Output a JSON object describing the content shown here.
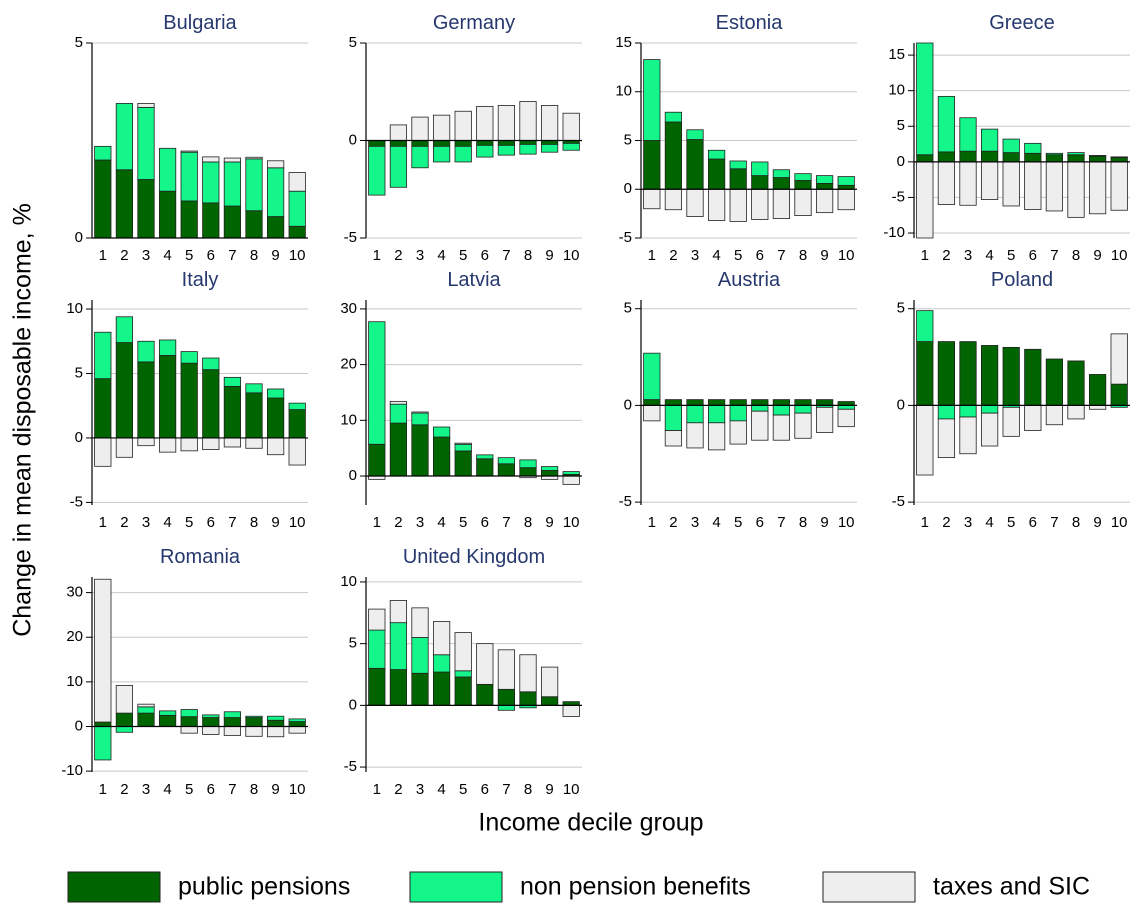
{
  "ylabel": "Change in mean disposable income, %",
  "xlabel": "Income decile group",
  "legend": [
    {
      "name": "public pensions",
      "color": "#006400"
    },
    {
      "name": "non pension benefits",
      "color": "#14f58a"
    },
    {
      "name": "taxes and SIC",
      "color": "#eeeeee"
    }
  ],
  "chart_data": [
    {
      "type": "bar",
      "stacked": true,
      "title": "Bulgaria",
      "categories": [
        1,
        2,
        3,
        4,
        5,
        6,
        7,
        8,
        9,
        10
      ],
      "series": [
        {
          "values": [
            2.0,
            1.75,
            1.5,
            1.2,
            0.95,
            0.9,
            0.82,
            0.7,
            0.55,
            0.3
          ]
        },
        {
          "values": [
            0.35,
            1.7,
            1.85,
            1.1,
            1.25,
            1.05,
            1.13,
            1.33,
            1.25,
            0.9
          ]
        },
        {
          "values": [
            0,
            0,
            0.1,
            0,
            0.03,
            0.13,
            0.1,
            0.04,
            0.18,
            0.48
          ]
        }
      ],
      "ylim": [
        0,
        5
      ],
      "yticks": [
        0,
        5
      ],
      "grid": true
    },
    {
      "type": "bar",
      "stacked": true,
      "title": "Germany",
      "categories": [
        1,
        2,
        3,
        4,
        5,
        6,
        7,
        8,
        9,
        10
      ],
      "series": [
        {
          "values": [
            -0.3,
            -0.3,
            -0.3,
            -0.3,
            -0.3,
            -0.25,
            -0.25,
            -0.2,
            -0.2,
            -0.15
          ]
        },
        {
          "values": [
            -2.5,
            -2.1,
            -1.1,
            -0.8,
            -0.8,
            -0.6,
            -0.5,
            -0.5,
            -0.4,
            -0.35
          ]
        },
        {
          "values": [
            0,
            0.8,
            1.2,
            1.3,
            1.5,
            1.75,
            1.8,
            2.0,
            1.8,
            1.4
          ]
        }
      ],
      "ylim": [
        -5,
        5
      ],
      "yticks": [
        -5,
        0,
        5
      ],
      "grid": true
    },
    {
      "type": "bar",
      "stacked": true,
      "title": "Estonia",
      "categories": [
        1,
        2,
        3,
        4,
        5,
        6,
        7,
        8,
        9,
        10
      ],
      "series": [
        {
          "values": [
            5,
            6.9,
            5.1,
            3.1,
            2.1,
            1.4,
            1.2,
            0.9,
            0.6,
            0.4
          ]
        },
        {
          "values": [
            8.3,
            1.0,
            1.0,
            0.9,
            0.8,
            1.4,
            0.8,
            0.7,
            0.8,
            0.9
          ]
        },
        {
          "values": [
            -2,
            -2.1,
            -2.8,
            -3.2,
            -3.3,
            -3.1,
            -3.0,
            -2.7,
            -2.4,
            -2.1
          ]
        }
      ],
      "ylim": [
        -5,
        15
      ],
      "yticks": [
        -5,
        0,
        5,
        10,
        15
      ],
      "grid": true
    },
    {
      "type": "bar",
      "stacked": true,
      "title": "Greece",
      "categories": [
        1,
        2,
        3,
        4,
        5,
        6,
        7,
        8,
        9,
        10
      ],
      "series": [
        {
          "values": [
            1.0,
            1.4,
            1.5,
            1.5,
            1.3,
            1.2,
            1.0,
            1.0,
            0.8,
            0.6
          ]
        },
        {
          "values": [
            15.7,
            7.8,
            4.7,
            3.1,
            1.9,
            1.4,
            0.2,
            0.3,
            0.1,
            0.1
          ]
        },
        {
          "values": [
            -10.7,
            -6.0,
            -6.1,
            -5.3,
            -6.2,
            -6.7,
            -6.9,
            -7.8,
            -7.3,
            -6.8
          ]
        }
      ],
      "ylim": [
        -10.7,
        16.7
      ],
      "yticks": [
        -10,
        -5,
        0,
        5,
        10,
        15
      ],
      "grid": true
    },
    {
      "type": "bar",
      "stacked": true,
      "title": "Italy",
      "categories": [
        1,
        2,
        3,
        4,
        5,
        6,
        7,
        8,
        9,
        10
      ],
      "series": [
        {
          "values": [
            4.6,
            7.4,
            5.9,
            6.4,
            5.8,
            5.3,
            4.0,
            3.5,
            3.1,
            2.2
          ]
        },
        {
          "values": [
            3.6,
            2.0,
            1.6,
            1.2,
            0.9,
            0.9,
            0.7,
            0.7,
            0.7,
            0.5
          ]
        },
        {
          "values": [
            -2.2,
            -1.5,
            -0.6,
            -1.1,
            -1.0,
            -0.9,
            -0.7,
            -0.8,
            -1.3,
            -2.1
          ]
        }
      ],
      "ylim": [
        -5.2,
        10.7
      ],
      "yticks": [
        -5,
        0,
        5,
        10
      ],
      "grid": true
    },
    {
      "type": "bar",
      "stacked": true,
      "title": "Latvia",
      "categories": [
        1,
        2,
        3,
        4,
        5,
        6,
        7,
        8,
        9,
        10
      ],
      "series": [
        {
          "values": [
            5.7,
            9.5,
            9.2,
            7.0,
            4.5,
            3.1,
            2.2,
            1.5,
            1.0,
            0.3
          ]
        },
        {
          "values": [
            22,
            3.4,
            2.1,
            1.8,
            1.2,
            0.7,
            1.1,
            1.4,
            0.7,
            0.5
          ]
        },
        {
          "values": [
            -0.6,
            0.5,
            0.2,
            0,
            0.2,
            0,
            0,
            -0.3,
            -0.6,
            -1.5
          ]
        }
      ],
      "ylim": [
        -5.2,
        31.6
      ],
      "yticks": [
        0,
        10,
        20,
        30
      ],
      "grid": true
    },
    {
      "type": "bar",
      "stacked": true,
      "title": "Austria",
      "categories": [
        1,
        2,
        3,
        4,
        5,
        6,
        7,
        8,
        9,
        10
      ],
      "series": [
        {
          "values": [
            0.3,
            0.3,
            0.3,
            0.3,
            0.3,
            0.3,
            0.3,
            0.3,
            0.3,
            0.2
          ]
        },
        {
          "values": [
            2.4,
            -1.3,
            -0.9,
            -0.9,
            -0.8,
            -0.3,
            -0.5,
            -0.4,
            -0.1,
            -0.2
          ]
        },
        {
          "values": [
            -0.8,
            -0.8,
            -1.3,
            -1.4,
            -1.2,
            -1.5,
            -1.3,
            -1.3,
            -1.3,
            -0.9
          ]
        }
      ],
      "ylim": [
        -5.15,
        5.45
      ],
      "yticks": [
        -5,
        0,
        5
      ],
      "grid": true
    },
    {
      "type": "bar",
      "stacked": true,
      "title": "Poland",
      "categories": [
        1,
        2,
        3,
        4,
        5,
        6,
        7,
        8,
        9,
        10
      ],
      "series": [
        {
          "values": [
            3.3,
            3.3,
            3.3,
            3.1,
            3.0,
            2.9,
            2.4,
            2.3,
            1.6,
            1.1
          ]
        },
        {
          "values": [
            1.6,
            -0.7,
            -0.6,
            -0.4,
            -0.1,
            0,
            0,
            0,
            0,
            -0.1
          ]
        },
        {
          "values": [
            -3.6,
            -2.0,
            -1.9,
            -1.7,
            -1.5,
            -1.3,
            -1.0,
            -0.7,
            -0.2,
            2.6
          ]
        }
      ],
      "ylim": [
        -5.15,
        5.45
      ],
      "yticks": [
        -5,
        0,
        5
      ],
      "grid": true
    },
    {
      "type": "bar",
      "stacked": true,
      "title": "Romania",
      "categories": [
        1,
        2,
        3,
        4,
        5,
        6,
        7,
        8,
        9,
        10
      ],
      "series": [
        {
          "values": [
            1.0,
            3.0,
            3.0,
            2.5,
            2.2,
            2.0,
            2.0,
            2.0,
            1.4,
            1.1
          ]
        },
        {
          "values": [
            -7.5,
            -1.3,
            1.4,
            1.0,
            1.6,
            0.6,
            1.3,
            0.3,
            0.9,
            0.6
          ]
        },
        {
          "values": [
            32,
            6.2,
            0.6,
            0,
            -1.5,
            -1.8,
            -2.0,
            -2.2,
            -2.3,
            -1.5
          ]
        }
      ],
      "ylim": [
        -10.2,
        33.5
      ],
      "yticks": [
        -10,
        0,
        10,
        20,
        30
      ],
      "grid": true
    },
    {
      "type": "bar",
      "stacked": true,
      "title": "United Kingdom",
      "categories": [
        1,
        2,
        3,
        4,
        5,
        6,
        7,
        8,
        9,
        10
      ],
      "series": [
        {
          "values": [
            3.0,
            2.9,
            2.6,
            2.7,
            2.3,
            1.7,
            1.3,
            1.1,
            0.7,
            0.3
          ]
        },
        {
          "values": [
            3.1,
            3.8,
            2.9,
            1.4,
            0.5,
            0,
            -0.4,
            -0.2,
            0,
            0
          ]
        },
        {
          "values": [
            1.7,
            1.8,
            2.4,
            2.7,
            3.1,
            3.3,
            3.2,
            3.0,
            2.4,
            -0.9
          ]
        }
      ],
      "ylim": [
        -5.4,
        10.4
      ],
      "yticks": [
        -5,
        0,
        5,
        10
      ],
      "grid": true
    }
  ]
}
